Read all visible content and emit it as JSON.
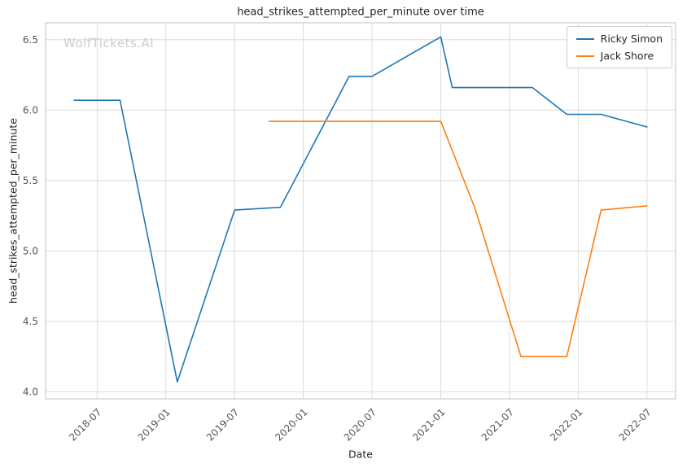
{
  "watermark": "WolfTickets.AI",
  "chart_data": {
    "type": "line",
    "title": "head_strikes_attempted_per_minute over time",
    "xlabel": "Date",
    "ylabel": "head_strikes_attempted_per_minute",
    "x_epoch": "2018-01",
    "xlim_months": [
      1.5,
      56.5
    ],
    "ylim": [
      3.95,
      6.62
    ],
    "x_ticks": [
      "2018-07",
      "2019-01",
      "2019-07",
      "2020-01",
      "2020-07",
      "2021-01",
      "2021-07",
      "2022-01",
      "2022-07"
    ],
    "y_ticks": [
      4.0,
      4.5,
      5.0,
      5.5,
      6.0,
      6.5
    ],
    "grid": true,
    "grid_color": "#dcdcdc",
    "frame_color": "#cccccc",
    "tick_color": "#555555",
    "legend_position": "upper right",
    "series": [
      {
        "name": "Ricky Simon",
        "color": "#1f77b4",
        "points": [
          [
            "2018-05",
            6.07
          ],
          [
            "2018-09",
            6.07
          ],
          [
            "2019-02",
            4.07
          ],
          [
            "2019-07",
            5.29
          ],
          [
            "2019-11",
            5.31
          ],
          [
            "2020-05",
            6.24
          ],
          [
            "2020-07",
            6.24
          ],
          [
            "2021-01",
            6.52
          ],
          [
            "2021-02",
            6.16
          ],
          [
            "2021-09",
            6.16
          ],
          [
            "2021-12",
            5.97
          ],
          [
            "2022-03",
            5.97
          ],
          [
            "2022-07",
            5.88
          ]
        ]
      },
      {
        "name": "Jack Shore",
        "color": "#ff7f0e",
        "points": [
          [
            "2019-10",
            5.92
          ],
          [
            "2021-01",
            5.92
          ],
          [
            "2021-04",
            5.3
          ],
          [
            "2021-08",
            4.25
          ],
          [
            "2021-12",
            4.25
          ],
          [
            "2022-03",
            5.29
          ],
          [
            "2022-07",
            5.32
          ]
        ]
      }
    ]
  }
}
